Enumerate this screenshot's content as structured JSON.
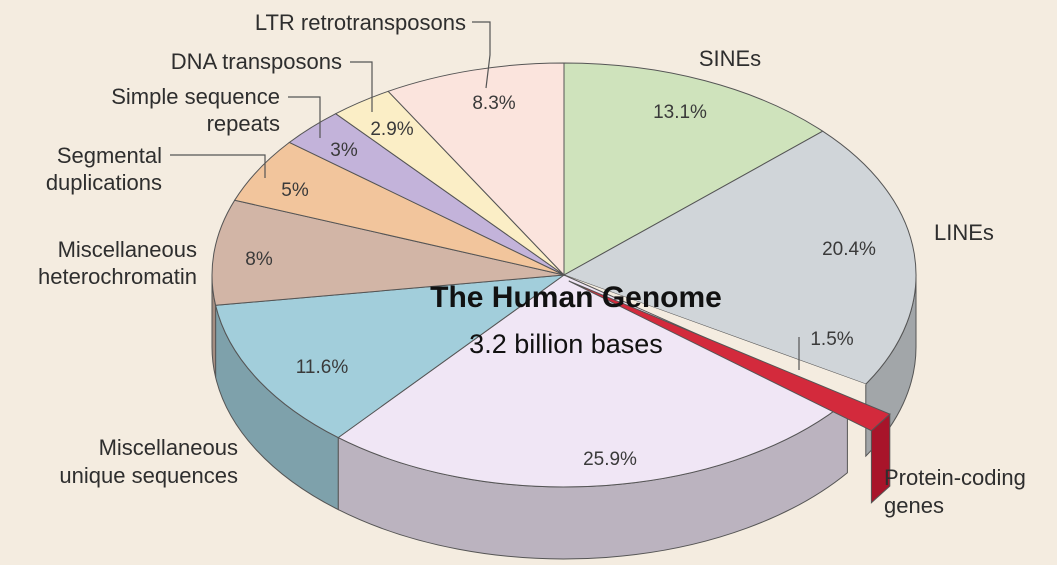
{
  "chart_data": {
    "type": "pie",
    "title": "The Human Genome",
    "subtitle": "3.2 billion bases",
    "slices": [
      {
        "label": "SINEs",
        "value": 13.1,
        "value_label": "13.1%",
        "color": "#cfe3bc"
      },
      {
        "label": "LINEs",
        "value": 20.4,
        "value_label": "20.4%",
        "color": "#d0d5d9"
      },
      {
        "label": "Protein-coding genes",
        "value": 1.5,
        "value_label": "1.5%",
        "color": "#d32a3c"
      },
      {
        "label": "",
        "value": 25.9,
        "value_label": "25.9%",
        "color": "#f0e6f5"
      },
      {
        "label": "Miscellaneous unique sequences",
        "value": 11.6,
        "value_label": "11.6%",
        "color": "#a2cedb"
      },
      {
        "label": "Miscellaneous heterochromatin",
        "value": 8,
        "value_label": "8%",
        "color": "#d2b5a6"
      },
      {
        "label": "Segmental duplications",
        "value": 5,
        "value_label": "5%",
        "color": "#f2c59c"
      },
      {
        "label": "Simple sequence repeats",
        "value": 3,
        "value_label": "3%",
        "color": "#c3b3da"
      },
      {
        "label": "DNA transposons",
        "value": 2.9,
        "value_label": "2.9%",
        "color": "#fbeec6"
      },
      {
        "label": "LTR retrotransposons",
        "value": 8.3,
        "value_label": "8.3%",
        "color": "#fbe4dd"
      }
    ],
    "category_labels": {
      "sines": "SINEs",
      "lines": "LINEs",
      "protein_coding": [
        "Protein-coding",
        "genes"
      ],
      "misc_unique": [
        "Miscellaneous",
        "unique sequences"
      ],
      "misc_heterochromatin": [
        "Miscellaneous",
        "heterochromatin"
      ],
      "segmental": [
        "Segmental",
        "duplications"
      ],
      "simple_repeats": [
        "Simple sequence",
        "repeats"
      ],
      "dna_transposons": "DNA transposons",
      "ltr": "LTR retrotransposons"
    }
  }
}
